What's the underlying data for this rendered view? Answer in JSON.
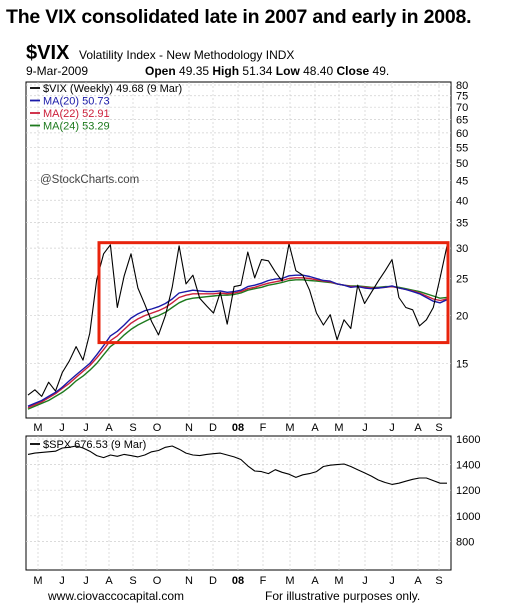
{
  "headline": "The VIX consolidated late in 2007 and early in 2008.",
  "header": {
    "symbol": "$VIX",
    "description": "Volatility Index - New Methodology INDX",
    "date": "9-Mar-2009",
    "open_label": "Open",
    "open": "49.35",
    "high_label": "High",
    "high": "51.34",
    "low_label": "Low",
    "low": "48.40",
    "close_label": "Close",
    "close": "49."
  },
  "watermark": "@StockCharts.com",
  "footer": {
    "left": "www.ciovaccocapital.com",
    "right": "For illustrative purposes only."
  },
  "colors": {
    "vix": "#000000",
    "ma20": "#1a1aa8",
    "ma22": "#cc1f3a",
    "ma24": "#1e7a1e",
    "spx": "#000000",
    "box": "#e8230c",
    "grid": "#cfcfcf"
  },
  "chart_data": [
    {
      "type": "line",
      "scale": "log",
      "x_labels": [
        "M",
        "J",
        "J",
        "A",
        "S",
        "O",
        "N",
        "D",
        "08",
        "F",
        "M",
        "A",
        "M",
        "J",
        "J",
        "A",
        "S"
      ],
      "ylim": [
        11,
        80
      ],
      "y_ticks": [
        80,
        75,
        70,
        65,
        60,
        55,
        50,
        45,
        40,
        35,
        30,
        25,
        20,
        15
      ],
      "legend": [
        {
          "key": "vix",
          "label": "$VIX (Weekly) 49.68 (9 Mar)"
        },
        {
          "key": "ma20",
          "label": "MA(20) 50.73"
        },
        {
          "key": "ma22",
          "label": "MA(22) 52.91"
        },
        {
          "key": "ma24",
          "label": "MA(24) 53.29"
        }
      ],
      "legend_position": "top-left",
      "highlight_box": {
        "x_from": "mid-Jul 2007",
        "x_to": "Sep 2008",
        "y_from": 17,
        "y_to": 31
      },
      "series": [
        {
          "name": "$VIX (Weekly)",
          "key": "vix",
          "values": [
            12.4,
            12.8,
            12.3,
            13.4,
            12.7,
            14.2,
            15.2,
            16.6,
            15.3,
            18.0,
            24.8,
            29.0,
            30.6,
            21.0,
            25.4,
            29.0,
            23.6,
            21.4,
            19.3,
            17.8,
            20.0,
            23.7,
            30.4,
            24.2,
            25.5,
            22.2,
            21.2,
            20.3,
            23.0,
            19.0,
            23.8,
            24.0,
            29.3,
            25.1,
            28.0,
            27.8,
            26.0,
            24.6,
            30.8,
            26.2,
            25.5,
            23.3,
            20.3,
            18.9,
            20.1,
            17.3,
            19.5,
            18.5,
            24.0,
            21.5,
            23.0,
            24.6,
            26.2,
            28.0,
            22.3,
            21.0,
            20.7,
            18.8,
            19.5,
            21.0,
            25.1,
            30.4
          ]
        },
        {
          "name": "MA(20)",
          "key": "ma20",
          "values": [
            11.6,
            11.8,
            12.0,
            12.3,
            12.6,
            13.0,
            13.5,
            14.0,
            14.5,
            15.0,
            15.8,
            16.7,
            17.7,
            18.2,
            18.9,
            19.7,
            20.2,
            20.6,
            20.8,
            21.1,
            21.5,
            22.1,
            22.9,
            23.1,
            23.3,
            23.2,
            23.1,
            23.1,
            23.2,
            23.0,
            23.1,
            23.3,
            23.8,
            24.0,
            24.3,
            24.7,
            24.9,
            25.0,
            25.4,
            25.5,
            25.5,
            25.3,
            25.0,
            24.7,
            24.6,
            24.2,
            24.0,
            23.7,
            23.8,
            23.6,
            23.5,
            23.6,
            23.7,
            23.9,
            23.6,
            23.4,
            23.1,
            22.8,
            22.3,
            21.8,
            21.6,
            22.0
          ]
        },
        {
          "name": "MA(22)",
          "key": "ma22",
          "values": [
            11.5,
            11.7,
            11.9,
            12.2,
            12.5,
            12.9,
            13.3,
            13.8,
            14.3,
            14.8,
            15.5,
            16.3,
            17.2,
            17.7,
            18.4,
            19.1,
            19.6,
            20.0,
            20.3,
            20.6,
            21.0,
            21.6,
            22.3,
            22.6,
            22.8,
            22.8,
            22.8,
            22.8,
            22.9,
            22.8,
            22.9,
            23.1,
            23.5,
            23.7,
            24.0,
            24.3,
            24.5,
            24.7,
            25.0,
            25.1,
            25.1,
            25.0,
            24.8,
            24.6,
            24.5,
            24.2,
            24.0,
            23.8,
            23.8,
            23.7,
            23.6,
            23.6,
            23.7,
            23.8,
            23.6,
            23.4,
            23.2,
            22.9,
            22.5,
            22.1,
            21.9,
            22.1
          ]
        },
        {
          "name": "MA(24)",
          "key": "ma24",
          "values": [
            11.4,
            11.6,
            11.8,
            12.0,
            12.3,
            12.6,
            13.0,
            13.5,
            13.9,
            14.4,
            15.0,
            15.8,
            16.6,
            17.1,
            17.8,
            18.4,
            18.9,
            19.3,
            19.7,
            20.0,
            20.4,
            21.0,
            21.6,
            22.0,
            22.2,
            22.3,
            22.4,
            22.5,
            22.6,
            22.6,
            22.7,
            22.9,
            23.3,
            23.5,
            23.7,
            24.0,
            24.2,
            24.4,
            24.7,
            24.8,
            24.8,
            24.7,
            24.6,
            24.5,
            24.4,
            24.2,
            24.0,
            23.9,
            23.9,
            23.8,
            23.7,
            23.7,
            23.8,
            23.8,
            23.7,
            23.5,
            23.3,
            23.1,
            22.8,
            22.5,
            22.2,
            22.3
          ]
        }
      ]
    },
    {
      "type": "line",
      "x_labels": [
        "M",
        "J",
        "J",
        "A",
        "S",
        "O",
        "N",
        "D",
        "08",
        "F",
        "M",
        "A",
        "M",
        "J",
        "J",
        "A",
        "S"
      ],
      "ylim": [
        600,
        1600
      ],
      "y_ticks": [
        1600,
        1400,
        1200,
        1000,
        800
      ],
      "legend": [
        {
          "key": "spx",
          "label": "$SPX 676.53 (9 Mar)"
        }
      ],
      "legend_position": "top-left",
      "series": [
        {
          "name": "$SPX",
          "key": "spx",
          "values": [
            1480,
            1490,
            1495,
            1500,
            1505,
            1530,
            1535,
            1545,
            1530,
            1505,
            1470,
            1455,
            1475,
            1465,
            1480,
            1470,
            1460,
            1475,
            1500,
            1510,
            1535,
            1545,
            1520,
            1490,
            1475,
            1470,
            1480,
            1485,
            1490,
            1475,
            1460,
            1440,
            1390,
            1350,
            1345,
            1330,
            1360,
            1340,
            1325,
            1300,
            1320,
            1330,
            1345,
            1385,
            1395,
            1400,
            1405,
            1385,
            1360,
            1335,
            1310,
            1280,
            1260,
            1245,
            1255,
            1270,
            1285,
            1295,
            1295,
            1275,
            1255,
            1255
          ]
        }
      ]
    }
  ]
}
